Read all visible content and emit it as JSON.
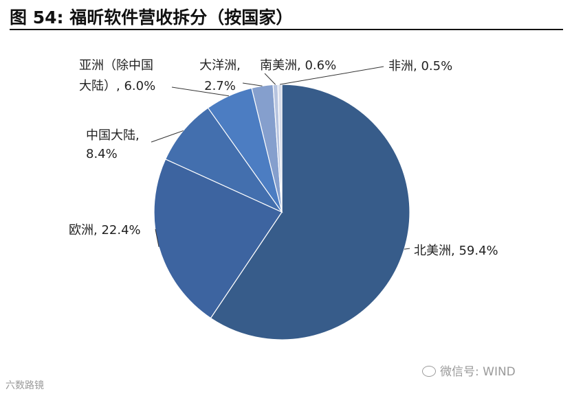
{
  "header": {
    "title": "图 54: 福昕软件营收拆分（按国家）"
  },
  "chart_data": {
    "type": "pie",
    "title": "",
    "slices": [
      {
        "name": "北美洲",
        "label": "北美洲, 59.4%",
        "value": 59.4,
        "color": "#375c8a"
      },
      {
        "name": "欧洲",
        "label": "欧洲, 22.4%",
        "value": 22.4,
        "color": "#3d64a0"
      },
      {
        "name": "中国大陆",
        "label": "中国大陆,\n8.4%",
        "value": 8.4,
        "color": "#436fae"
      },
      {
        "name": "亚洲（除中国大陆）",
        "label": "亚洲（除中国\n大陆）, 6.0%",
        "value": 6.0,
        "color": "#4c7dc2"
      },
      {
        "name": "大洋洲",
        "label": "大洋洲,\n2.7%",
        "value": 2.7,
        "color": "#859fcd"
      },
      {
        "name": "南美洲",
        "label": "南美洲, 0.6%",
        "value": 0.6,
        "color": "#b7c4df"
      },
      {
        "name": "非洲",
        "label": "非洲, 0.5%",
        "value": 0.5,
        "color": "#d7dcea"
      }
    ]
  },
  "watermarks": {
    "left": "六数路镜",
    "right": "微信号: WIND"
  }
}
